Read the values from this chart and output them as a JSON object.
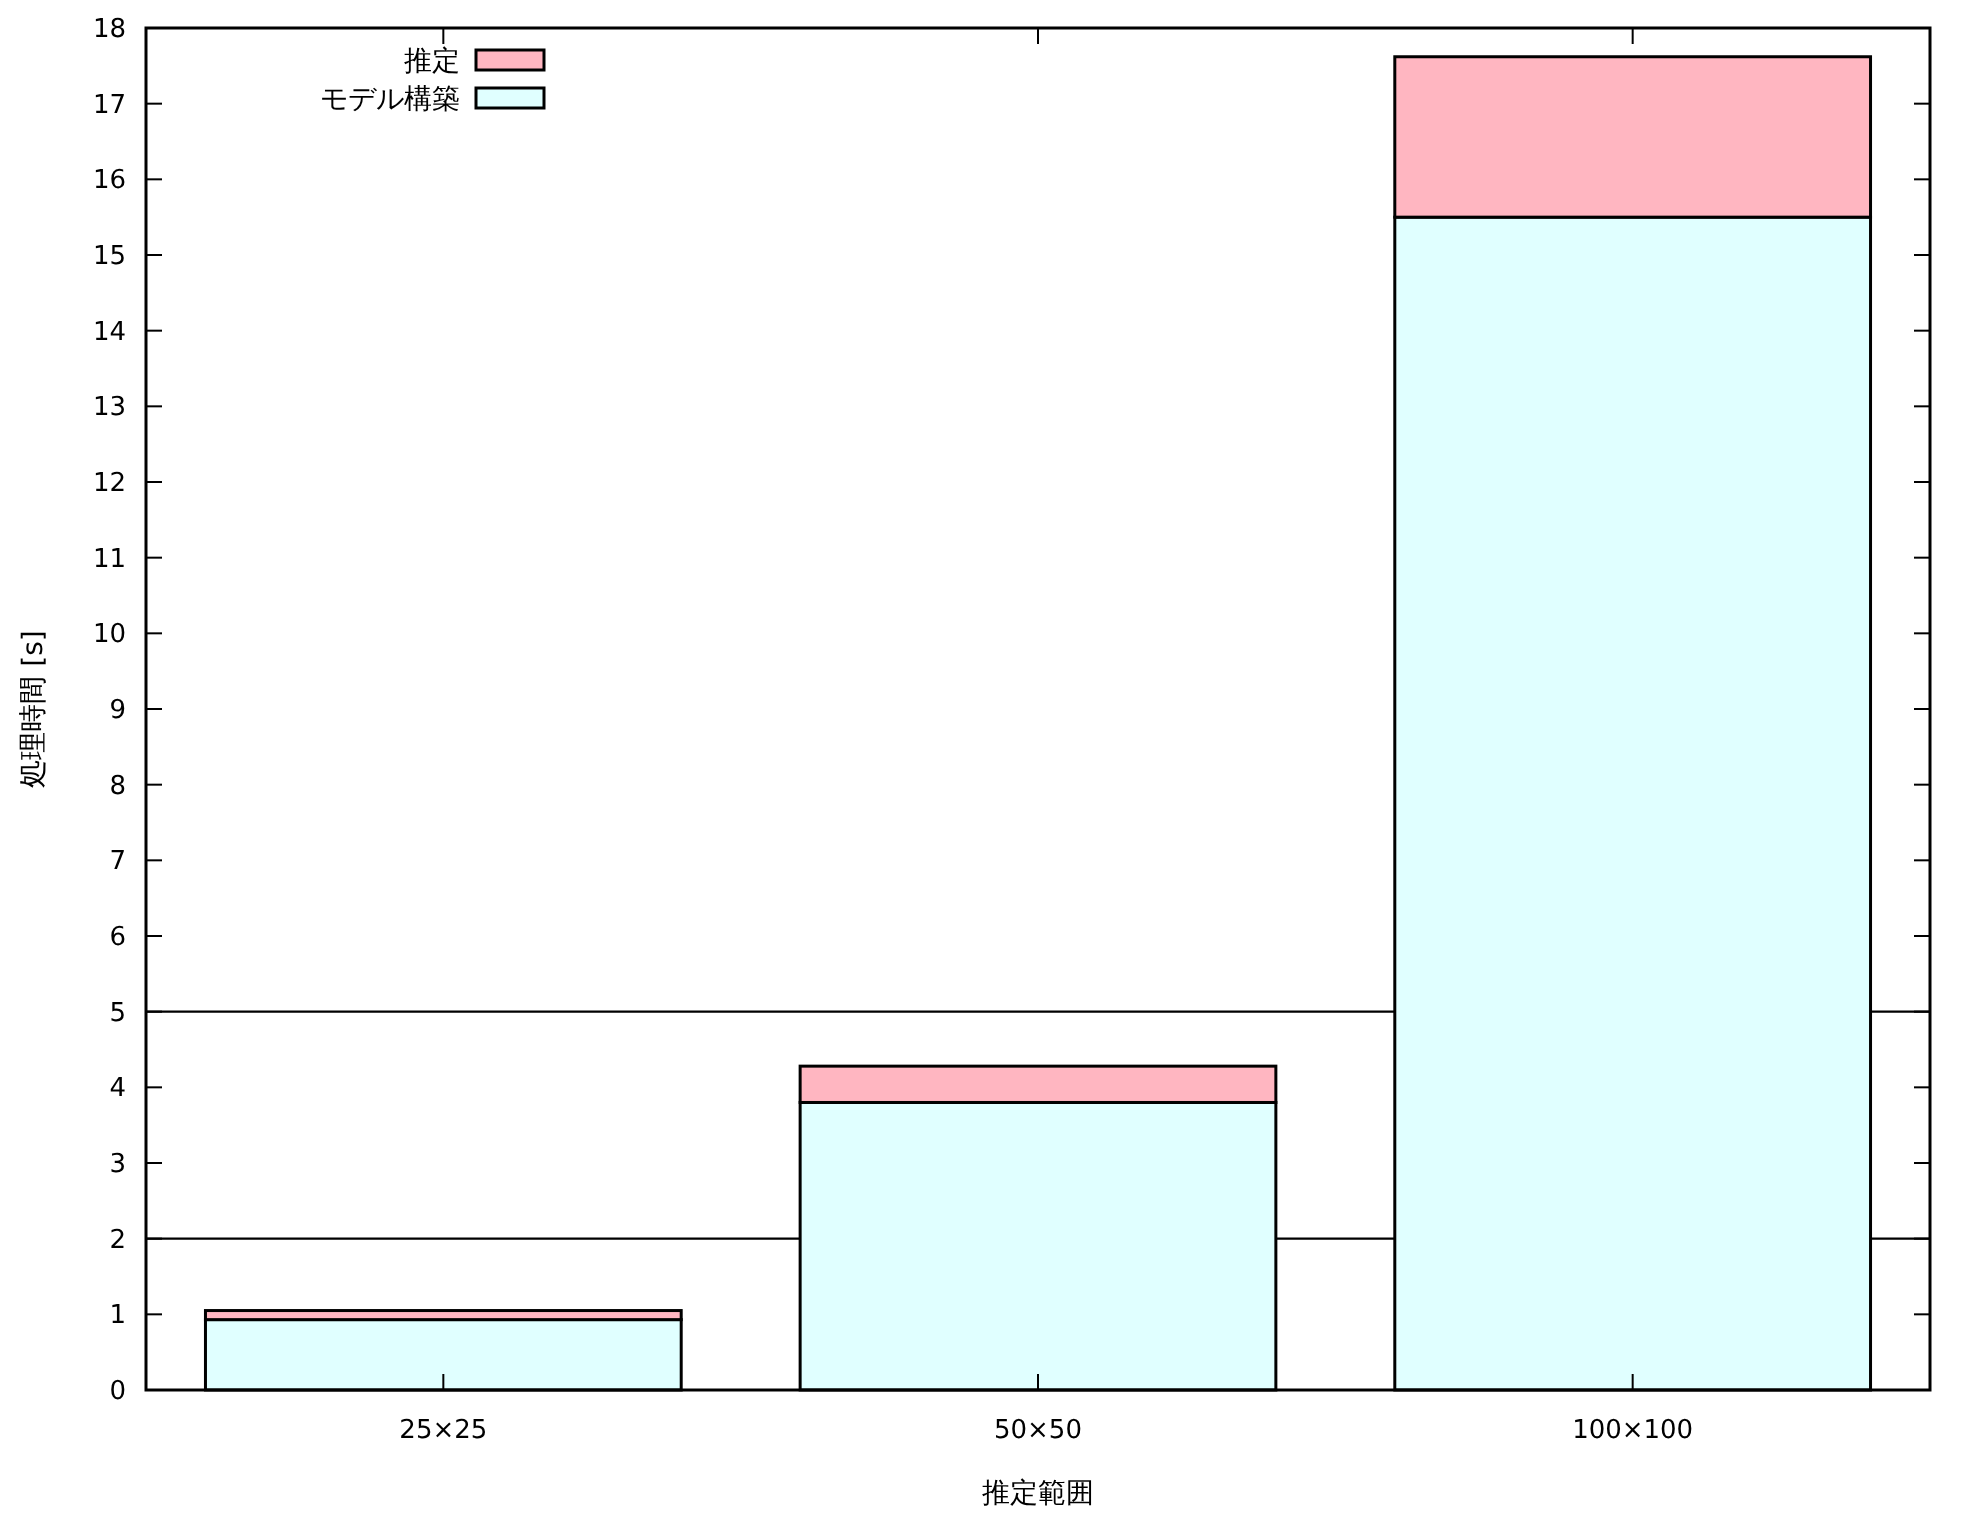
{
  "chart_data": {
    "type": "bar",
    "stacked": true,
    "xlabel": "推定範囲",
    "ylabel": "処理時間 [s]",
    "categories": [
      "25×25",
      "50×50",
      "100×100"
    ],
    "series": [
      {
        "name": "モデル構築",
        "color": "#e0ffff",
        "values": [
          0.93,
          3.8,
          15.5
        ]
      },
      {
        "name": "推定",
        "color": "#ffb6c1",
        "values": [
          0.12,
          0.48,
          2.12
        ]
      }
    ],
    "ylim": [
      0,
      18
    ],
    "yticks": [
      0,
      1,
      2,
      3,
      4,
      5,
      6,
      7,
      8,
      9,
      10,
      11,
      12,
      13,
      14,
      15,
      16,
      17,
      18
    ],
    "ref_lines": [
      {
        "axis": "y",
        "value": 2,
        "color": "#000000"
      },
      {
        "axis": "y",
        "value": 5,
        "color": "#000000"
      }
    ],
    "legend": "top left",
    "grid": false
  }
}
